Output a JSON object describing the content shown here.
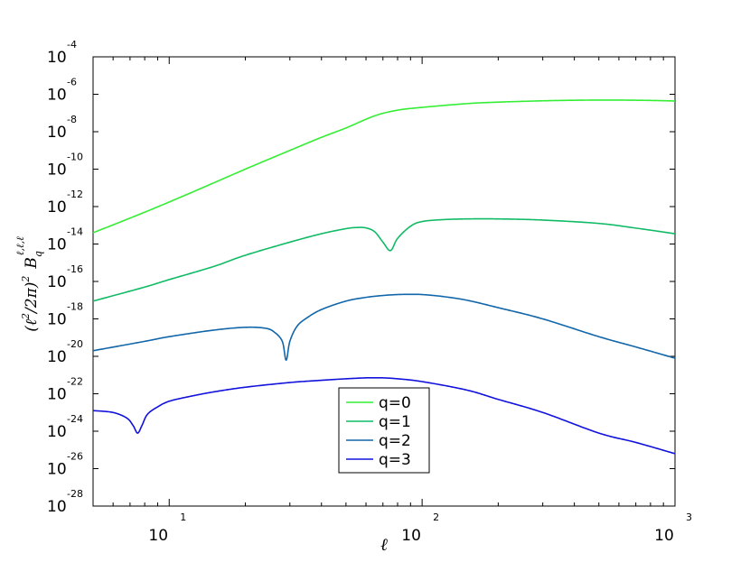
{
  "chart_data": {
    "type": "line",
    "xscale": "log",
    "yscale": "log",
    "xlim": [
      5,
      1000
    ],
    "ylim": [
      1e-28,
      0.0001
    ],
    "xlabel": "ℓ",
    "ylabel": {
      "prefix": "(ℓ",
      "sq1": "2",
      "mid": "/2π)",
      "sq2": "2",
      "B": "B",
      "sub": "q",
      "sup": "ℓ,ℓ,ℓ"
    },
    "x_ticks": [
      {
        "value": 10,
        "base": "10",
        "exp": "1"
      },
      {
        "value": 100,
        "base": "10",
        "exp": "2"
      },
      {
        "value": 1000,
        "base": "10",
        "exp": "3"
      }
    ],
    "y_ticks": [
      {
        "value": -28,
        "base": "10",
        "exp": "-28"
      },
      {
        "value": -26,
        "base": "10",
        "exp": "-26"
      },
      {
        "value": -24,
        "base": "10",
        "exp": "-24"
      },
      {
        "value": -22,
        "base": "10",
        "exp": "-22"
      },
      {
        "value": -20,
        "base": "10",
        "exp": "-20"
      },
      {
        "value": -18,
        "base": "10",
        "exp": "-18"
      },
      {
        "value": -16,
        "base": "10",
        "exp": "-16"
      },
      {
        "value": -14,
        "base": "10",
        "exp": "-14"
      },
      {
        "value": -12,
        "base": "10",
        "exp": "-12"
      },
      {
        "value": -10,
        "base": "10",
        "exp": "-10"
      },
      {
        "value": -8,
        "base": "10",
        "exp": "-8"
      },
      {
        "value": -6,
        "base": "10",
        "exp": "-6"
      },
      {
        "value": -4,
        "base": "10",
        "exp": "-4"
      }
    ],
    "legend_position": "lower center",
    "series": [
      {
        "name": "q=0",
        "color": "#33ee33",
        "x": [
          5,
          8,
          12,
          20,
          30,
          40,
          50,
          65,
          80,
          100,
          150,
          200,
          300,
          400,
          500,
          600,
          800,
          1000
        ],
        "log10_y": [
          -13.4,
          -12.3,
          -11.3,
          -10.0,
          -9.0,
          -8.3,
          -7.8,
          -7.15,
          -6.85,
          -6.7,
          -6.5,
          -6.42,
          -6.35,
          -6.32,
          -6.31,
          -6.31,
          -6.33,
          -6.36
        ],
        "dips": []
      },
      {
        "name": "q=1",
        "color": "#11bb66",
        "x": [
          5,
          8,
          10,
          15,
          20,
          30,
          40,
          50,
          55,
          60,
          65,
          70,
          75,
          80,
          90,
          100,
          120,
          150,
          200,
          300,
          500,
          700,
          1000
        ],
        "log10_y": [
          -17.05,
          -16.3,
          -15.9,
          -15.2,
          -14.6,
          -13.9,
          -13.45,
          -13.18,
          -13.12,
          -13.14,
          -13.35,
          -13.9,
          -14.35,
          -13.7,
          -13.05,
          -12.8,
          -12.7,
          -12.66,
          -12.66,
          -12.72,
          -12.9,
          -13.15,
          -13.45
        ],
        "dips": [
          {
            "x": 74,
            "depth": 1.0
          }
        ]
      },
      {
        "name": "q=2",
        "color": "#1166aa",
        "x": [
          5,
          8,
          10,
          15,
          20,
          24,
          26,
          28,
          29,
          30,
          32,
          35,
          40,
          50,
          60,
          70,
          80,
          90,
          100,
          120,
          150,
          200,
          300,
          500,
          700,
          1000
        ],
        "log10_y": [
          -19.7,
          -19.2,
          -18.95,
          -18.6,
          -18.45,
          -18.5,
          -18.7,
          -19.2,
          -20.2,
          -19.2,
          -18.4,
          -17.95,
          -17.5,
          -17.05,
          -16.85,
          -16.75,
          -16.7,
          -16.69,
          -16.7,
          -16.8,
          -17.0,
          -17.4,
          -18.0,
          -18.95,
          -19.5,
          -20.1
        ],
        "dips": [
          {
            "x": 29,
            "depth": 1.0
          }
        ]
      },
      {
        "name": "q=3",
        "color": "#1111dd",
        "x": [
          5,
          6,
          6.8,
          7.2,
          7.5,
          7.8,
          8.2,
          9,
          10,
          12,
          15,
          20,
          30,
          40,
          50,
          60,
          65,
          70,
          80,
          100,
          150,
          200,
          300,
          500,
          700,
          1000
        ],
        "log10_y": [
          -22.9,
          -23.0,
          -23.3,
          -23.7,
          -24.1,
          -23.7,
          -23.1,
          -22.7,
          -22.4,
          -22.15,
          -21.9,
          -21.65,
          -21.4,
          -21.28,
          -21.2,
          -21.15,
          -21.15,
          -21.15,
          -21.2,
          -21.35,
          -21.8,
          -22.3,
          -23.0,
          -24.1,
          -24.6,
          -25.2
        ],
        "dips": [
          {
            "x": 7.5,
            "depth": 1.0
          }
        ]
      }
    ]
  }
}
